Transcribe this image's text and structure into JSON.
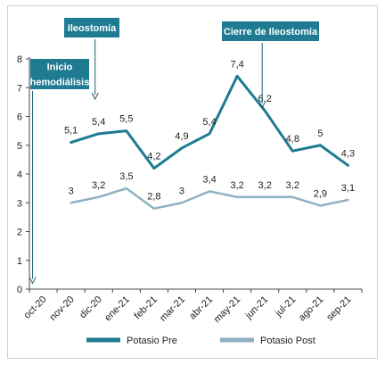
{
  "chart_data": {
    "type": "line",
    "categories": [
      "oct-20",
      "nov-20",
      "dic-20",
      "ene-21",
      "feb-21",
      "mar-21",
      "abr-21",
      "may-21",
      "jun-21",
      "jul-21",
      "ago-21",
      "sep-21"
    ],
    "series": [
      {
        "name": "Potasio Pre",
        "color": "#1e7b92",
        "values": [
          null,
          5.1,
          5.4,
          5.5,
          4.2,
          4.9,
          5.4,
          7.4,
          6.2,
          4.8,
          5.0,
          4.3
        ],
        "labels": [
          "",
          "5,1",
          "5,4",
          "5,5",
          "4,2",
          "4,9",
          "5,4",
          "7,4",
          "6,2",
          "4,8",
          "5",
          "4,3"
        ]
      },
      {
        "name": "Potasio Post",
        "color": "#8fb1c3",
        "values": [
          null,
          3.0,
          3.2,
          3.5,
          2.8,
          3.0,
          3.4,
          3.2,
          3.2,
          3.2,
          2.9,
          3.1
        ],
        "labels": [
          "",
          "3",
          "3,2",
          "3,5",
          "2,8",
          "3",
          "3,4",
          "3,2",
          "3,2",
          "3,2",
          "2,9",
          "3,1"
        ]
      }
    ],
    "yticks": [
      0,
      1,
      2,
      3,
      4,
      5,
      6,
      7,
      8
    ],
    "ylim": [
      0,
      8
    ],
    "grid": false,
    "legend_position": "bottom",
    "annotations": [
      {
        "text_lines": [
          "Ileostomía"
        ],
        "category_index": 2,
        "pointer_value": 6.6,
        "color": "#1e7b92"
      },
      {
        "text_lines": [
          "Cierre de Ileostomía"
        ],
        "category_index": 8,
        "pointer_value": 6.3,
        "color": "#1e7b92"
      },
      {
        "text_lines": [
          "Inicio",
          "hemodiálisis"
        ],
        "category_index": 0,
        "pointer_value": 0.2,
        "color": "#1e7b92"
      }
    ]
  }
}
